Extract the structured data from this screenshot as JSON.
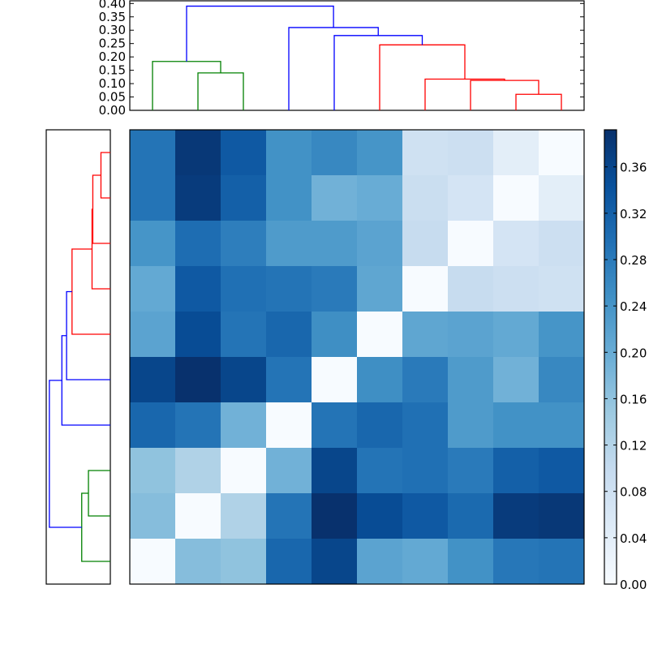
{
  "chart_data": [
    {
      "type": "dendrogram",
      "orientation": "top",
      "ylim": [
        0,
        0.41
      ],
      "yticks": [
        "0.00",
        "0.05",
        "0.10",
        "0.15",
        "0.20",
        "0.25",
        "0.30",
        "0.35",
        "0.40"
      ],
      "leaf_count": 10,
      "links": [
        {
          "left": 1,
          "right": 2,
          "left_height": 0,
          "right_height": 0,
          "height": 0.14,
          "color": "#008000"
        },
        {
          "left": 0,
          "right": 1.5,
          "left_height": 0,
          "right_height": 0.14,
          "height": 0.183,
          "color": "#008000"
        },
        {
          "left": 8,
          "right": 9,
          "left_height": 0,
          "right_height": 0,
          "height": 0.06,
          "color": "#ff0000"
        },
        {
          "left": 7,
          "right": 8.5,
          "left_height": 0,
          "right_height": 0.06,
          "height": 0.112,
          "color": "#ff0000"
        },
        {
          "left": 6,
          "right": 7.75,
          "left_height": 0,
          "right_height": 0.112,
          "height": 0.117,
          "color": "#ff0000"
        },
        {
          "left": 5,
          "right": 6.875,
          "left_height": 0,
          "right_height": 0.117,
          "height": 0.245,
          "color": "#ff0000"
        },
        {
          "left": 4,
          "right": 5.9375,
          "left_height": 0,
          "right_height": 0.245,
          "height": 0.28,
          "color": "#0000ff"
        },
        {
          "left": 3,
          "right": 4.96875,
          "left_height": 0,
          "right_height": 0.28,
          "height": 0.31,
          "color": "#0000ff"
        },
        {
          "left": 0.75,
          "right": 3.984,
          "left_height": 0.183,
          "right_height": 0.31,
          "height": 0.39,
          "color": "#0000ff"
        }
      ]
    },
    {
      "type": "dendrogram",
      "orientation": "left",
      "xlim": [
        0,
        0.41
      ],
      "leaf_count": 10,
      "same_links_as": "top"
    },
    {
      "type": "heatmap",
      "colormap": "Blues",
      "vmin": 0,
      "vmax": 0.392,
      "rows_top_to_bottom": [
        [
          0.29,
          0.38,
          0.33,
          0.245,
          0.26,
          0.24,
          0.08,
          0.085,
          0.04,
          0.0
        ],
        [
          0.29,
          0.375,
          0.32,
          0.245,
          0.19,
          0.2,
          0.09,
          0.07,
          0.0,
          0.04
        ],
        [
          0.24,
          0.3,
          0.275,
          0.23,
          0.23,
          0.215,
          0.095,
          0.0,
          0.07,
          0.085
        ],
        [
          0.205,
          0.33,
          0.295,
          0.29,
          0.28,
          0.21,
          0.0,
          0.095,
          0.085,
          0.08
        ],
        [
          0.215,
          0.35,
          0.29,
          0.31,
          0.25,
          0.0,
          0.21,
          0.215,
          0.205,
          0.24
        ],
        [
          0.36,
          0.39,
          0.36,
          0.29,
          0.0,
          0.25,
          0.28,
          0.23,
          0.19,
          0.26
        ],
        [
          0.31,
          0.29,
          0.19,
          0.0,
          0.29,
          0.31,
          0.295,
          0.23,
          0.245,
          0.245
        ],
        [
          0.16,
          0.125,
          0.0,
          0.19,
          0.36,
          0.29,
          0.295,
          0.28,
          0.32,
          0.33
        ],
        [
          0.17,
          0.0,
          0.125,
          0.29,
          0.39,
          0.35,
          0.33,
          0.305,
          0.375,
          0.38
        ],
        [
          0.0,
          0.17,
          0.16,
          0.31,
          0.36,
          0.215,
          0.205,
          0.245,
          0.285,
          0.29
        ]
      ],
      "colorbar": {
        "ticks": [
          "0.00",
          "0.04",
          "0.08",
          "0.12",
          "0.16",
          "0.20",
          "0.24",
          "0.28",
          "0.32",
          "0.36"
        ]
      }
    }
  ]
}
